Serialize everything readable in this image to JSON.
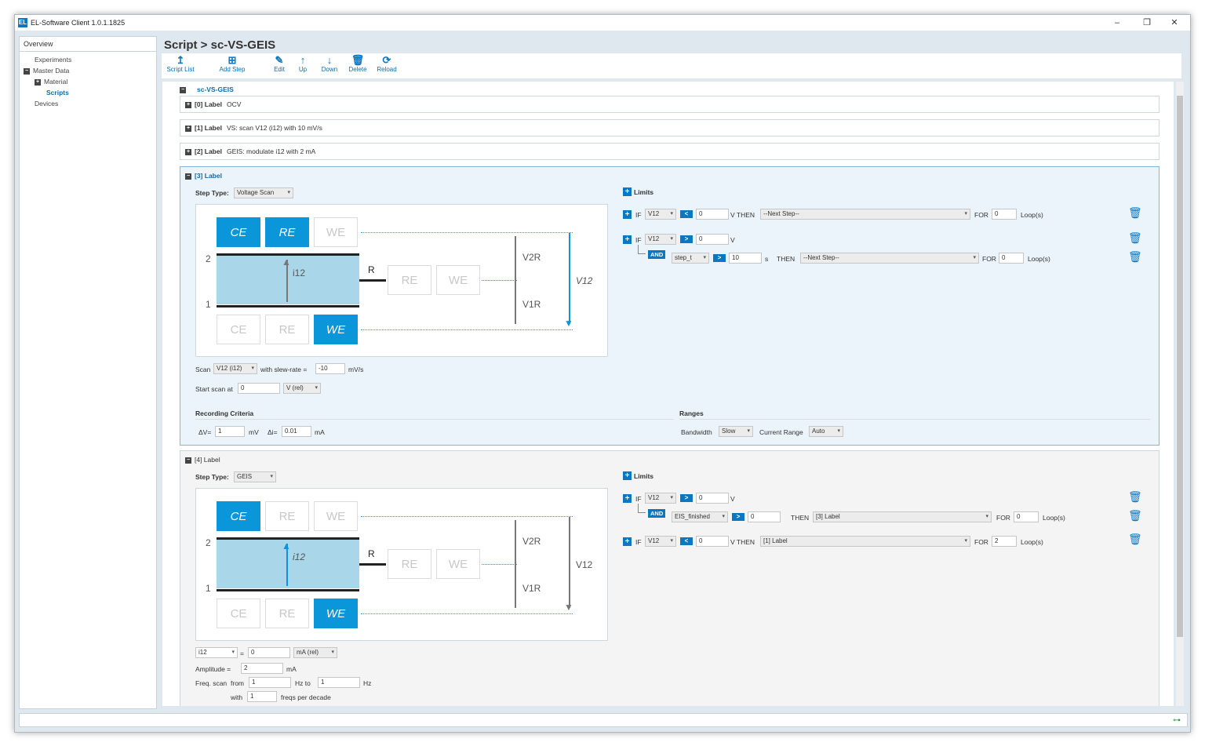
{
  "window": {
    "title": "EL-Software Client 1.0.1.1825",
    "logo": "EL",
    "min": "–",
    "restore": "❐",
    "close": "✕"
  },
  "sidebar": {
    "header": "Overview",
    "items": [
      {
        "label": "Experiments"
      },
      {
        "label": "Master Data",
        "toggle": "−"
      },
      {
        "label": "Material",
        "toggle": "+"
      },
      {
        "label": "Scripts"
      },
      {
        "label": "Devices"
      }
    ]
  },
  "page": {
    "title": "Script > sc-VS-GEIS"
  },
  "toolbar": {
    "script_list": "Script List",
    "add_step": "Add Step",
    "edit": "Edit",
    "up": "Up",
    "down": "Down",
    "delete": "Delete",
    "reload": "Reload",
    "icons": {
      "script_list": "↥",
      "add_step": "⊞",
      "edit": "✎",
      "up": "↑",
      "down": "↓",
      "delete": "🗑",
      "reload": "⟳"
    }
  },
  "script": {
    "name": "sc-VS-GEIS",
    "steps": [
      {
        "index": "[0] Label",
        "desc": "OCV"
      },
      {
        "index": "[1] Label",
        "desc": "VS: scan V12 (i12) with 10 mV/s"
      },
      {
        "index": "[2] Label",
        "desc": "GEIS: modulate i12 with 2 mA"
      }
    ]
  },
  "step3": {
    "title": "[3] Label",
    "step_type_label": "Step Type:",
    "step_type": "Voltage Scan",
    "limits_label": "Limits",
    "diagram": {
      "ce": "CE",
      "re": "RE",
      "we": "WE",
      "n2": "2",
      "n1": "1",
      "i12": "i12",
      "r": "R",
      "v2r": "V2R",
      "v1r": "V1R",
      "v12": "V12"
    },
    "scan_label": "Scan",
    "scan_var": "V12 (i12)",
    "slew_label": "with slew-rate =",
    "slew": "-10",
    "slew_unit": "mV/s",
    "start_label": "Start scan at",
    "start": "0",
    "start_unit": "V (rel)",
    "recording_label": "Recording Criteria",
    "dv_label": "ΔV=",
    "dv": "1",
    "dv_unit": "mV",
    "di_label": "Δi=",
    "di": "0.01",
    "di_unit": "mA",
    "ranges_label": "Ranges",
    "bandwidth_label": "Bandwidth",
    "bandwidth": "Slow",
    "current_range_label": "Current Range",
    "current_range": "Auto",
    "limit1": {
      "if": "IF",
      "var": "V12",
      "op": "<",
      "val": "0",
      "unit": "V THEN",
      "then": "--Next Step--",
      "for": "FOR",
      "loops": "0",
      "loops_unit": "Loop(s)"
    },
    "limit2": {
      "if": "IF",
      "var": "V12",
      "op": ">",
      "val": "0",
      "unit": "V",
      "and": "AND",
      "var2": "step_t",
      "op2": ">",
      "val2": "10",
      "unit2": "s",
      "then_label": "THEN",
      "then": "--Next Step--",
      "for": "FOR",
      "loops": "0",
      "loops_unit": "Loop(s)"
    }
  },
  "step4": {
    "title": "[4] Label",
    "step_type_label": "Step Type:",
    "step_type": "GEIS",
    "limits_label": "Limits",
    "diagram": {
      "ce": "CE",
      "re": "RE",
      "we": "WE",
      "n2": "2",
      "n1": "1",
      "i12": "i12",
      "r": "R",
      "v2r": "V2R",
      "v1r": "V1R",
      "v12": "V12"
    },
    "var": "i12",
    "eq": "=",
    "val": "0",
    "val_unit": "mA (rel)",
    "amp_label": "Amplitude =",
    "amp": "2",
    "amp_unit": "mA",
    "freq_label": "Freq. scan",
    "from_label": "from",
    "from": "1",
    "hz_to": "Hz to",
    "to": "1",
    "hz": "Hz",
    "with_label": "with",
    "with": "1",
    "freqs_label": "freqs per decade",
    "limit1": {
      "if": "IF",
      "var": "V12",
      "op": ">",
      "val": "0",
      "unit": "V",
      "and": "AND",
      "var2": "EIS_finished",
      "op2": ">",
      "val2": "0",
      "then_label": "THEN",
      "then": "[3] Label",
      "for": "FOR",
      "loops": "0",
      "loops_unit": "Loop(s)"
    },
    "limit2": {
      "if": "IF",
      "var": "V12",
      "op": "<",
      "val": "0",
      "unit": "V THEN",
      "then": "[1] Label",
      "for": "FOR",
      "loops": "2",
      "loops_unit": "Loop(s)"
    }
  },
  "colors": {
    "accent": "#0a77c2",
    "active_box": "#0a96d8",
    "cell": "#a9d6e8",
    "panel_active": "#ebf4fa"
  }
}
